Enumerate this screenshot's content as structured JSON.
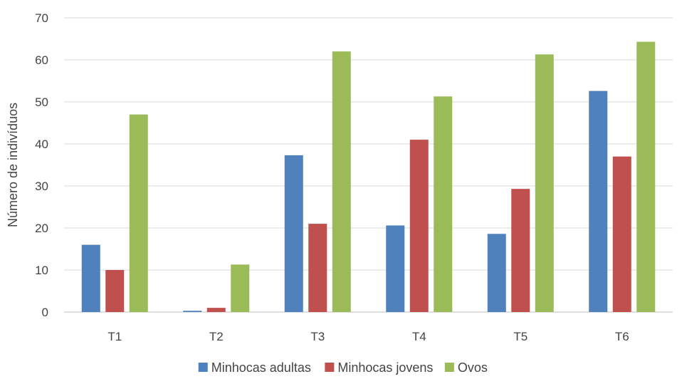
{
  "chart_data": {
    "type": "bar",
    "title": "",
    "xlabel": "",
    "ylabel": "Número de indivíduos",
    "ylim": [
      0,
      70
    ],
    "yticks": [
      0,
      10,
      20,
      30,
      40,
      50,
      60,
      70
    ],
    "grid": "horizontal",
    "legend_position": "bottom",
    "categories": [
      "T1",
      "T2",
      "T3",
      "T4",
      "T5",
      "T6"
    ],
    "series": [
      {
        "name": "Minhocas adultas",
        "color": "#4F81BD",
        "values": [
          16,
          0.3,
          37.3,
          20.6,
          18.6,
          52.6
        ]
      },
      {
        "name": "Minhocas jovens",
        "color": "#C0504D",
        "values": [
          10,
          1,
          21,
          41,
          29.3,
          37
        ]
      },
      {
        "name": "Ovos",
        "color": "#9BBB59",
        "values": [
          47,
          11.3,
          62,
          51.3,
          61.3,
          64.3
        ]
      }
    ]
  }
}
